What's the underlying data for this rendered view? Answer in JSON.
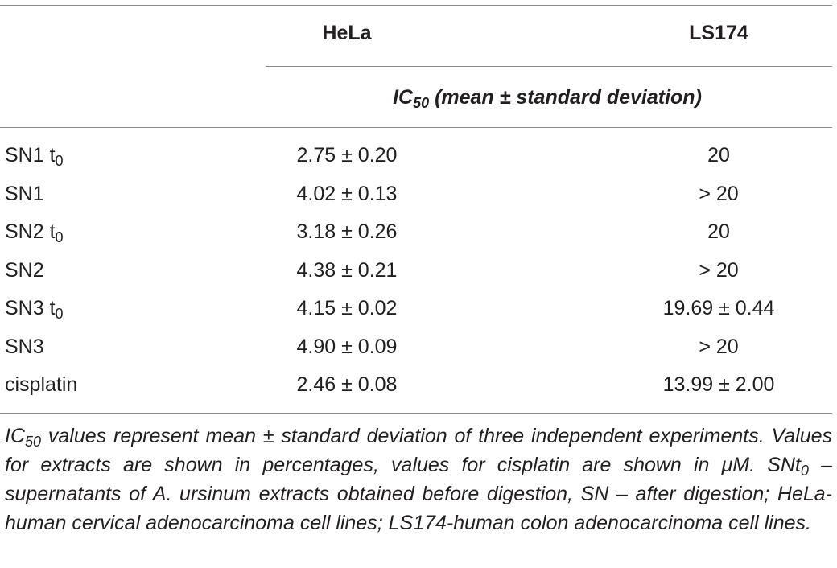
{
  "table": {
    "columns": [
      "HeLa",
      "LS174"
    ],
    "subheader": {
      "prefix": "IC",
      "sub": "50",
      "suffix": " (mean ± standard deviation)"
    },
    "rows": [
      {
        "name": "SN1 t",
        "name_sub": "0",
        "hela": "2.75 ± 0.20",
        "ls174": "20"
      },
      {
        "name": "SN1",
        "name_sub": "",
        "hela": "4.02 ± 0.13",
        "ls174": "> 20"
      },
      {
        "name": "SN2 t",
        "name_sub": "0",
        "hela": "3.18 ± 0.26",
        "ls174": "20"
      },
      {
        "name": "SN2",
        "name_sub": "",
        "hela": "4.38 ± 0.21",
        "ls174": "> 20"
      },
      {
        "name": "SN3 t",
        "name_sub": "0",
        "hela": "4.15 ± 0.02",
        "ls174": "19.69 ± 0.44"
      },
      {
        "name": "SN3",
        "name_sub": "",
        "hela": "4.90 ± 0.09",
        "ls174": "> 20"
      },
      {
        "name": "cisplatin",
        "name_sub": "",
        "hela": "2.46 ± 0.08",
        "ls174": "13.99 ± 2.00"
      }
    ]
  },
  "footnote": {
    "ic": "IC",
    "ic_sub": "50",
    "part1": " values represent mean ± standard deviation of three independent experiments. Values for extracts are shown in percentages, values for cisplatin are shown in μM. SNt",
    "snt_sub": "0",
    "part2": " – supernatants of A. ursinum extracts obtained before digestion, SN – after digestion; HeLa-human cervical adenocarcinoma cell lines; LS174-human colon adenocarcinoma cell lines."
  }
}
